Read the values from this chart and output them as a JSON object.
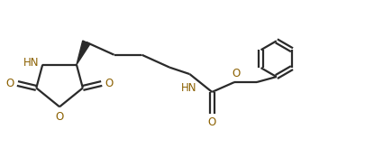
{
  "bg_color": "#ffffff",
  "line_color": "#2a2a2a",
  "heteroatom_color": "#8B6000",
  "bond_lw": 1.6,
  "font_size_atom": 8.5,
  "fig_width": 4.15,
  "fig_height": 1.85,
  "dpi": 100,
  "xlim": [
    0,
    8.3
  ],
  "ylim": [
    0,
    3.7
  ]
}
